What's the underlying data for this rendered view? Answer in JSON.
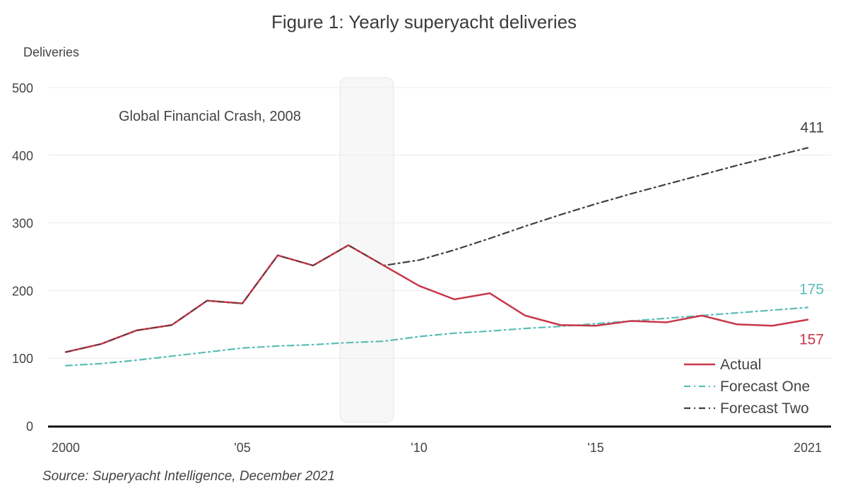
{
  "chart_data": {
    "type": "line",
    "title": "Figure 1: Yearly superyacht deliveries",
    "ylabel": "Deliveries",
    "xlabel": "",
    "source": "Source: Superyacht Intelligence, December 2021",
    "xlim": [
      2000,
      2021
    ],
    "ylim": [
      0,
      500
    ],
    "yticks": [
      0,
      100,
      200,
      300,
      400,
      500
    ],
    "xticks": [
      {
        "value": 2000,
        "label": "2000"
      },
      {
        "value": 2005,
        "label": "'05"
      },
      {
        "value": 2010,
        "label": "'10"
      },
      {
        "value": 2015,
        "label": "'15"
      },
      {
        "value": 2021,
        "label": "2021"
      }
    ],
    "grid": "horizontal",
    "legend_position": "bottom-right",
    "annotation": {
      "text": "Global Financial Crash, 2008",
      "year": 2008
    },
    "series": [
      {
        "name": "Actual",
        "color": "#c8374a",
        "style": "solid",
        "end_label": "157",
        "x": [
          2000,
          2001,
          2002,
          2003,
          2004,
          2005,
          2006,
          2007,
          2008,
          2009,
          2010,
          2011,
          2012,
          2013,
          2014,
          2015,
          2016,
          2017,
          2018,
          2019,
          2020,
          2021
        ],
        "y": [
          109,
          121,
          141,
          149,
          185,
          181,
          252,
          237,
          267,
          237,
          207,
          187,
          196,
          163,
          149,
          148,
          155,
          153,
          163,
          150,
          148,
          157
        ]
      },
      {
        "name": "Forecast One",
        "color": "#5bbdb8",
        "style": "dashdot",
        "end_label": "175",
        "x": [
          2000,
          2001,
          2002,
          2003,
          2004,
          2005,
          2006,
          2007,
          2008,
          2009,
          2010,
          2011,
          2012,
          2013,
          2014,
          2015,
          2016,
          2017,
          2018,
          2019,
          2020,
          2021
        ],
        "y": [
          89,
          92,
          97,
          103,
          109,
          115,
          118,
          120,
          123,
          125,
          132,
          137,
          140,
          144,
          147,
          151,
          155,
          159,
          163,
          167,
          171,
          175
        ]
      },
      {
        "name": "Forecast Two",
        "color": "#404040",
        "style": "dashdot",
        "end_label": "411",
        "x": [
          2000,
          2001,
          2002,
          2003,
          2004,
          2005,
          2006,
          2007,
          2008,
          2009,
          2010,
          2011,
          2012,
          2013,
          2014,
          2015,
          2016,
          2017,
          2018,
          2019,
          2020,
          2021
        ],
        "y": [
          109,
          121,
          141,
          149,
          185,
          181,
          252,
          237,
          267,
          237,
          245,
          260,
          277,
          295,
          312,
          328,
          343,
          357,
          371,
          385,
          398,
          411
        ]
      }
    ]
  }
}
